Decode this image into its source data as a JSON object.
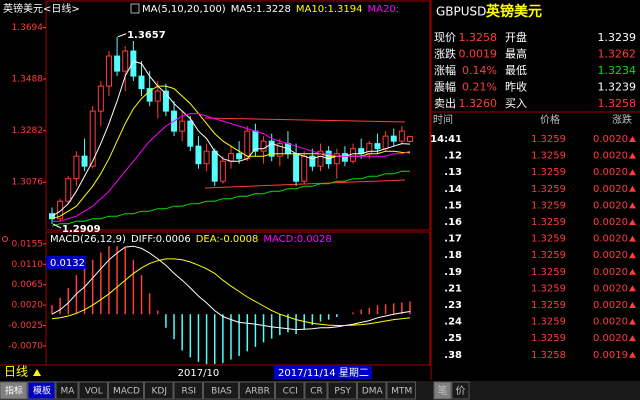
{
  "chart_data": [
    {
      "type": "candlestick",
      "title": "英镑美元<日线>",
      "indicator": "MA(5,10,20,100)",
      "up_color": "#ff3c3c",
      "down_color": "#54fcfc",
      "categories": [
        null,
        null,
        null,
        null,
        null,
        null,
        null,
        null,
        null,
        null,
        null,
        null,
        null,
        null,
        null,
        null,
        null,
        null,
        "2017/10",
        null,
        null,
        null,
        null,
        null,
        null,
        null,
        null,
        null,
        null,
        null,
        null,
        null,
        null,
        null,
        null,
        null,
        null,
        null,
        null,
        null,
        null,
        null,
        null,
        null,
        null
      ],
      "open": [
        1.295,
        1.293,
        1.3,
        1.309,
        1.318,
        1.314,
        1.336,
        1.346,
        1.358,
        1.352,
        1.36,
        1.35,
        1.345,
        1.34,
        1.344,
        1.336,
        1.328,
        1.332,
        1.322,
        1.315,
        1.32,
        1.308,
        1.316,
        1.319,
        1.317,
        1.328,
        1.32,
        1.324,
        1.318,
        1.323,
        1.319,
        1.308,
        1.318,
        1.314,
        1.32,
        1.315,
        1.319,
        1.316,
        1.321,
        1.319,
        1.323,
        1.321,
        1.326,
        1.324,
        1.3239
      ],
      "high": [
        1.2975,
        1.301,
        1.31,
        1.32,
        1.325,
        1.338,
        1.348,
        1.36,
        1.3657,
        1.362,
        1.364,
        1.356,
        1.352,
        1.348,
        1.347,
        1.34,
        1.336,
        1.334,
        1.326,
        1.323,
        1.321,
        1.318,
        1.322,
        1.324,
        1.33,
        1.331,
        1.326,
        1.327,
        1.325,
        1.328,
        1.323,
        1.32,
        1.321,
        1.323,
        1.322,
        1.321,
        1.322,
        1.323,
        1.325,
        1.324,
        1.327,
        1.328,
        1.329,
        1.33,
        1.3262
      ],
      "low": [
        1.2909,
        1.292,
        1.299,
        1.306,
        1.312,
        1.313,
        1.33,
        1.342,
        1.35,
        1.344,
        1.348,
        1.342,
        1.338,
        1.333,
        1.334,
        1.326,
        1.324,
        1.32,
        1.313,
        1.312,
        1.306,
        1.307,
        1.313,
        1.315,
        1.316,
        1.318,
        1.315,
        1.316,
        1.314,
        1.317,
        1.306,
        1.307,
        1.312,
        1.312,
        1.313,
        1.309,
        1.314,
        1.315,
        1.317,
        1.317,
        1.319,
        1.32,
        1.322,
        1.323,
        1.3234
      ],
      "close": [
        1.293,
        1.3,
        1.309,
        1.318,
        1.314,
        1.336,
        1.346,
        1.358,
        1.352,
        1.36,
        1.35,
        1.345,
        1.34,
        1.344,
        1.336,
        1.328,
        1.332,
        1.322,
        1.315,
        1.32,
        1.308,
        1.316,
        1.319,
        1.317,
        1.328,
        1.32,
        1.324,
        1.318,
        1.323,
        1.319,
        1.308,
        1.318,
        1.314,
        1.32,
        1.315,
        1.319,
        1.316,
        1.321,
        1.319,
        1.323,
        1.321,
        1.326,
        1.324,
        1.328,
        1.3258
      ],
      "series": [
        {
          "name": "MA5:1.3228",
          "color": "#ffffff",
          "values": [
            1.294,
            1.296,
            1.299,
            1.304,
            1.31,
            1.316,
            1.323,
            1.331,
            1.34,
            1.35,
            1.356,
            1.355,
            1.35,
            1.346,
            1.343,
            1.339,
            1.336,
            1.333,
            1.328,
            1.325,
            1.32,
            1.317,
            1.316,
            1.316,
            1.317,
            1.321,
            1.321,
            1.323,
            1.322,
            1.321,
            1.319,
            1.318,
            1.317,
            1.318,
            1.317,
            1.318,
            1.318,
            1.319,
            1.319,
            1.32,
            1.32,
            1.321,
            1.322,
            1.323,
            1.3228
          ]
        },
        {
          "name": "MA10:1.3194",
          "color": "#ffff00",
          "values": [
            1.293,
            1.294,
            1.296,
            1.298,
            1.302,
            1.306,
            1.311,
            1.317,
            1.324,
            1.331,
            1.337,
            1.341,
            1.344,
            1.346,
            1.346,
            1.345,
            1.342,
            1.339,
            1.335,
            1.331,
            1.327,
            1.324,
            1.322,
            1.32,
            1.318,
            1.318,
            1.318,
            1.319,
            1.319,
            1.319,
            1.319,
            1.319,
            1.319,
            1.319,
            1.318,
            1.318,
            1.318,
            1.318,
            1.318,
            1.319,
            1.319,
            1.32,
            1.32,
            1.3195,
            1.3194
          ]
        },
        {
          "name": "MA20:",
          "color": "#ff00ff",
          "values": [
            1.292,
            1.292,
            1.293,
            1.294,
            1.296,
            1.298,
            1.301,
            1.304,
            1.308,
            1.312,
            1.316,
            1.32,
            1.324,
            1.327,
            1.33,
            1.332,
            1.334,
            1.335,
            1.335,
            1.334,
            1.333,
            1.332,
            1.331,
            1.33,
            1.329,
            1.328,
            1.327,
            1.325,
            1.324,
            1.323,
            1.322,
            1.321,
            1.32,
            1.319,
            1.319,
            1.318,
            1.318,
            1.318,
            1.318,
            1.318,
            1.318,
            1.318,
            1.319,
            1.319,
            1.32
          ]
        },
        {
          "color": "#00e000",
          "values": [
            1.29,
            1.291,
            1.291,
            1.292,
            1.292,
            1.293,
            1.293,
            1.294,
            1.294,
            1.295,
            1.295,
            1.296,
            1.296,
            1.297,
            1.297,
            1.298,
            1.298,
            1.299,
            1.299,
            1.3,
            1.3,
            1.301,
            1.301,
            1.302,
            1.302,
            1.303,
            1.303,
            1.304,
            1.304,
            1.305,
            1.305,
            1.306,
            1.306,
            1.307,
            1.307,
            1.308,
            1.308,
            1.309,
            1.309,
            1.31,
            1.31,
            1.311,
            1.311,
            1.312,
            1.312
          ]
        }
      ],
      "annotations": [
        "1.3657",
        "1.2909"
      ],
      "ylim": [
        1.2885,
        1.3732
      ],
      "yticks": [
        1.3694,
        1.3488,
        1.3282,
        1.3076
      ],
      "period_label": "日线",
      "cursor_date": "2017/11/14 星期二"
    },
    {
      "type": "macd",
      "title": "MACD(26,12,9)",
      "up_color": "#ff3c3c",
      "down_color": "#54fcfc",
      "series": [
        {
          "name": "DIFF:0.0006",
          "color": "#ffffff",
          "values": [
            0.0,
            0.001,
            0.0025,
            0.0045,
            0.006,
            0.008,
            0.01,
            0.012,
            0.0135,
            0.0148,
            0.015,
            0.0145,
            0.0135,
            0.0122,
            0.0108,
            0.009,
            0.0075,
            0.0058,
            0.004,
            0.0025,
            0.0008,
            -0.0005,
            -0.0012,
            -0.0018,
            -0.002,
            -0.0022,
            -0.0025,
            -0.0028,
            -0.003,
            -0.0032,
            -0.0034,
            -0.0033,
            -0.0032,
            -0.003,
            -0.003,
            -0.0028,
            -0.0025,
            -0.0022,
            -0.0018,
            -0.0014,
            -0.0008,
            -0.0004,
            0.0,
            0.0003,
            0.0006
          ]
        },
        {
          "name": "DEA:-0.0008",
          "color": "#ffff00",
          "values": [
            -0.001,
            -0.0008,
            -0.0004,
            0.0002,
            0.001,
            0.002,
            0.0032,
            0.0045,
            0.006,
            0.0075,
            0.009,
            0.0102,
            0.0112,
            0.0118,
            0.0122,
            0.0122,
            0.012,
            0.0115,
            0.0108,
            0.01,
            0.009,
            0.0075,
            0.0062,
            0.005,
            0.0038,
            0.0028,
            0.0018,
            0.0008,
            0.0,
            -0.0006,
            -0.0012,
            -0.0016,
            -0.002,
            -0.0022,
            -0.0024,
            -0.0025,
            -0.0025,
            -0.0024,
            -0.0023,
            -0.0021,
            -0.0018,
            -0.0015,
            -0.0012,
            -0.001,
            -0.0008
          ]
        },
        {
          "name": "MACD:0.0028",
          "color": "#ff00ff",
          "values": [
            0.002,
            0.0036,
            0.0058,
            0.0086,
            0.01,
            0.012,
            0.0136,
            0.015,
            0.015,
            0.0146,
            0.012,
            0.0086,
            0.0046,
            0.0008,
            -0.003,
            -0.0055,
            -0.008,
            -0.0095,
            -0.0105,
            -0.011,
            -0.011,
            -0.0108,
            -0.01,
            -0.0092,
            -0.0082,
            -0.0072,
            -0.0062,
            -0.0054,
            -0.0046,
            -0.004,
            -0.0044,
            -0.0034,
            -0.0024,
            -0.0016,
            -0.0012,
            -0.0006,
            0.0,
            0.0004,
            0.001,
            0.0014,
            0.002,
            0.0022,
            0.0024,
            0.0026,
            0.0028
          ]
        }
      ],
      "cursor_value": "0.0132",
      "ylim": [
        -0.0112,
        0.0168
      ],
      "yticks": [
        0.0155,
        {
          "value": 0.011,
          "label": "0.0110"
        },
        0.0065,
        {
          "value": 0.002,
          "label": "0.0020"
        },
        -0.0025,
        {
          "value": -0.007,
          "label": "-0.0070"
        }
      ]
    }
  ],
  "quote_panel": {
    "symbol": "GBPUSD",
    "name": "英镑美元",
    "rows": [
      [
        "现价",
        "1.3258",
        "开盘",
        "1.3239"
      ],
      [
        "涨跌",
        "0.0019",
        "最高",
        "1.3262"
      ],
      [
        "涨幅",
        "0.14%",
        "最低",
        "1.3234"
      ],
      [
        "震幅",
        "0.21%",
        "昨收",
        "1.3239"
      ],
      [
        "卖出",
        "1.3260",
        "买入",
        "1.3258"
      ]
    ],
    "trade_header": [
      "时间",
      "价格",
      "涨跌"
    ],
    "trades": [
      [
        "14:41",
        "1.3259",
        "0.0020"
      ],
      [
        ".12",
        "1.3259",
        "0.0020"
      ],
      [
        ".13",
        "1.3259",
        "0.0020"
      ],
      [
        ".14",
        "1.3259",
        "0.0020"
      ],
      [
        ".15",
        "1.3259",
        "0.0020"
      ],
      [
        ".16",
        "1.3259",
        "0.0020"
      ],
      [
        ".17",
        "1.3259",
        "0.0020"
      ],
      [
        ".18",
        "1.3259",
        "0.0020"
      ],
      [
        ".19",
        "1.3259",
        "0.0020"
      ],
      [
        ".21",
        "1.3259",
        "0.0020"
      ],
      [
        ".23",
        "1.3259",
        "0.0020"
      ],
      [
        ".24",
        "1.3259",
        "0.0020"
      ],
      [
        ".25",
        "1.3259",
        "0.0020"
      ],
      [
        ".38",
        "1.3258",
        "0.0019"
      ]
    ]
  },
  "toolbar": {
    "tabs": [
      "指标",
      "模板",
      "MA",
      "VOL",
      "MACD",
      "KDJ",
      "RSI",
      "BIAS",
      "ARBR",
      "CCI",
      "CR",
      "PSY",
      "DMA",
      "MTM"
    ],
    "right_tabs": [
      "笔",
      "价"
    ]
  }
}
